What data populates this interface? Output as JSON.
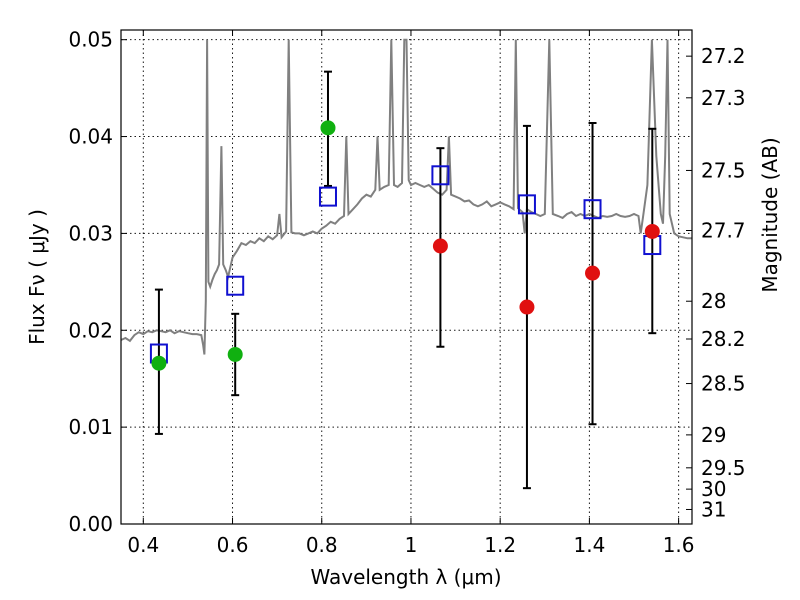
{
  "chart_data": {
    "type": "scatter",
    "xlabel": "Wavelength  λ (μm)",
    "ylabel": "Flux  Fν  ( μJy )",
    "ylabel_right": "Magnitude (AB)",
    "xlim": [
      0.35,
      1.63
    ],
    "ylim": [
      0.0,
      0.051
    ],
    "grid": true,
    "legend": "none",
    "x_ticks": [
      0.4,
      0.6,
      0.8,
      1.0,
      1.2,
      1.4,
      1.6
    ],
    "x_tick_labels": [
      "0.4",
      "0.6",
      "0.8",
      "1",
      "1.2",
      "1.4",
      "1.6"
    ],
    "y_ticks": [
      0.0,
      0.01,
      0.02,
      0.03,
      0.04,
      0.05
    ],
    "y_tick_labels": [
      "0.00",
      "0.01",
      "0.02",
      "0.03",
      "0.04",
      "0.05"
    ],
    "right_ticks": [
      {
        "label": "27.2",
        "flux": 0.0483
      },
      {
        "label": "27.3",
        "flux": 0.044
      },
      {
        "label": "27.5",
        "flux": 0.0365
      },
      {
        "label": "27.7",
        "flux": 0.0303
      },
      {
        "label": "28",
        "flux": 0.023
      },
      {
        "label": "28.2",
        "flux": 0.0191
      },
      {
        "label": "28.5",
        "flux": 0.0145
      },
      {
        "label": "29",
        "flux": 0.0092
      },
      {
        "label": "29.5",
        "flux": 0.0058
      },
      {
        "label": "30",
        "flux": 0.0036
      },
      {
        "label": "31",
        "flux": 0.0015
      }
    ],
    "model_points": [
      {
        "x": 0.435,
        "y": 0.0176
      },
      {
        "x": 0.606,
        "y": 0.0246
      },
      {
        "x": 0.814,
        "y": 0.0338
      },
      {
        "x": 1.066,
        "y": 0.036
      },
      {
        "x": 1.26,
        "y": 0.033
      },
      {
        "x": 1.407,
        "y": 0.0325
      },
      {
        "x": 1.541,
        "y": 0.0288
      }
    ],
    "green_points": [
      {
        "x": 0.435,
        "y": 0.0166,
        "err_lo": 0.0093,
        "err_hi": 0.0242
      },
      {
        "x": 0.606,
        "y": 0.0175,
        "err_lo": 0.0133,
        "err_hi": 0.0217
      },
      {
        "x": 0.814,
        "y": 0.0409,
        "err_lo": 0.0349,
        "err_hi": 0.0467
      }
    ],
    "red_points": [
      {
        "x": 1.066,
        "y": 0.0287,
        "err_lo": 0.0183,
        "err_hi": 0.0388
      },
      {
        "x": 1.26,
        "y": 0.0224,
        "err_lo": 0.0037,
        "err_hi": 0.0411
      },
      {
        "x": 1.407,
        "y": 0.0259,
        "err_lo": 0.0103,
        "err_hi": 0.0414
      },
      {
        "x": 1.541,
        "y": 0.0302,
        "err_lo": 0.0197,
        "err_hi": 0.0408
      }
    ],
    "spectrum": [
      [
        0.35,
        0.019
      ],
      [
        0.36,
        0.0192
      ],
      [
        0.37,
        0.0189
      ],
      [
        0.38,
        0.0195
      ],
      [
        0.39,
        0.0198
      ],
      [
        0.4,
        0.0196
      ],
      [
        0.41,
        0.0199
      ],
      [
        0.42,
        0.0198
      ],
      [
        0.43,
        0.02
      ],
      [
        0.44,
        0.0199
      ],
      [
        0.45,
        0.0198
      ],
      [
        0.46,
        0.02
      ],
      [
        0.47,
        0.0197
      ],
      [
        0.48,
        0.0199
      ],
      [
        0.49,
        0.0198
      ],
      [
        0.5,
        0.0197
      ],
      [
        0.51,
        0.0196
      ],
      [
        0.52,
        0.0196
      ],
      [
        0.53,
        0.0195
      ],
      [
        0.534,
        0.0185
      ],
      [
        0.537,
        0.0175
      ],
      [
        0.54,
        0.023
      ],
      [
        0.543,
        0.05
      ],
      [
        0.546,
        0.025
      ],
      [
        0.55,
        0.0245
      ],
      [
        0.555,
        0.0252
      ],
      [
        0.56,
        0.0258
      ],
      [
        0.565,
        0.0262
      ],
      [
        0.57,
        0.0268
      ],
      [
        0.575,
        0.039
      ],
      [
        0.579,
        0.0268
      ],
      [
        0.585,
        0.0262
      ],
      [
        0.59,
        0.0255
      ],
      [
        0.595,
        0.0265
      ],
      [
        0.6,
        0.0275
      ],
      [
        0.61,
        0.0282
      ],
      [
        0.62,
        0.029
      ],
      [
        0.63,
        0.0288
      ],
      [
        0.64,
        0.0292
      ],
      [
        0.65,
        0.029
      ],
      [
        0.66,
        0.0295
      ],
      [
        0.67,
        0.0292
      ],
      [
        0.68,
        0.0297
      ],
      [
        0.69,
        0.0294
      ],
      [
        0.7,
        0.0298
      ],
      [
        0.705,
        0.032
      ],
      [
        0.71,
        0.0296
      ],
      [
        0.72,
        0.0302
      ],
      [
        0.726,
        0.05
      ],
      [
        0.732,
        0.0301
      ],
      [
        0.74,
        0.03
      ],
      [
        0.75,
        0.03
      ],
      [
        0.76,
        0.0298
      ],
      [
        0.77,
        0.03
      ],
      [
        0.78,
        0.0302
      ],
      [
        0.79,
        0.03
      ],
      [
        0.8,
        0.0305
      ],
      [
        0.81,
        0.0308
      ],
      [
        0.82,
        0.0312
      ],
      [
        0.83,
        0.031
      ],
      [
        0.84,
        0.0315
      ],
      [
        0.85,
        0.0318
      ],
      [
        0.855,
        0.04
      ],
      [
        0.86,
        0.032
      ],
      [
        0.87,
        0.0325
      ],
      [
        0.88,
        0.033
      ],
      [
        0.89,
        0.0336
      ],
      [
        0.9,
        0.034
      ],
      [
        0.91,
        0.0338
      ],
      [
        0.92,
        0.0345
      ],
      [
        0.925,
        0.04
      ],
      [
        0.93,
        0.0345
      ],
      [
        0.94,
        0.0348
      ],
      [
        0.95,
        0.035
      ],
      [
        0.956,
        0.05
      ],
      [
        0.962,
        0.035
      ],
      [
        0.97,
        0.0348
      ],
      [
        0.98,
        0.0352
      ],
      [
        0.985,
        0.05
      ],
      [
        0.99,
        0.05
      ],
      [
        0.995,
        0.0355
      ],
      [
        1.0,
        0.035
      ],
      [
        1.01,
        0.0352
      ],
      [
        1.02,
        0.035
      ],
      [
        1.03,
        0.0348
      ],
      [
        1.04,
        0.035
      ],
      [
        1.05,
        0.0346
      ],
      [
        1.06,
        0.0342
      ],
      [
        1.07,
        0.034
      ],
      [
        1.08,
        0.0345
      ],
      [
        1.085,
        0.04
      ],
      [
        1.09,
        0.034
      ],
      [
        1.1,
        0.0338
      ],
      [
        1.11,
        0.0336
      ],
      [
        1.12,
        0.0333
      ],
      [
        1.13,
        0.0334
      ],
      [
        1.14,
        0.033
      ],
      [
        1.15,
        0.0328
      ],
      [
        1.16,
        0.033
      ],
      [
        1.17,
        0.0333
      ],
      [
        1.18,
        0.0328
      ],
      [
        1.19,
        0.033
      ],
      [
        1.2,
        0.0332
      ],
      [
        1.21,
        0.033
      ],
      [
        1.22,
        0.0328
      ],
      [
        1.23,
        0.0325
      ],
      [
        1.235,
        0.05
      ],
      [
        1.24,
        0.0326
      ],
      [
        1.25,
        0.0322
      ],
      [
        1.255,
        0.03
      ],
      [
        1.26,
        0.0325
      ],
      [
        1.27,
        0.0322
      ],
      [
        1.28,
        0.032
      ],
      [
        1.29,
        0.0318
      ],
      [
        1.3,
        0.032
      ],
      [
        1.31,
        0.05
      ],
      [
        1.318,
        0.032
      ],
      [
        1.33,
        0.0318
      ],
      [
        1.34,
        0.0316
      ],
      [
        1.35,
        0.032
      ],
      [
        1.36,
        0.0322
      ],
      [
        1.37,
        0.0318
      ],
      [
        1.38,
        0.032
      ],
      [
        1.39,
        0.0318
      ],
      [
        1.4,
        0.032
      ],
      [
        1.41,
        0.0318
      ],
      [
        1.42,
        0.0316
      ],
      [
        1.43,
        0.0318
      ],
      [
        1.44,
        0.0317
      ],
      [
        1.45,
        0.0318
      ],
      [
        1.46,
        0.032
      ],
      [
        1.47,
        0.0318
      ],
      [
        1.48,
        0.0317
      ],
      [
        1.49,
        0.0318
      ],
      [
        1.5,
        0.032
      ],
      [
        1.51,
        0.0318
      ],
      [
        1.515,
        0.03
      ],
      [
        1.52,
        0.0316
      ],
      [
        1.53,
        0.035
      ],
      [
        1.54,
        0.05
      ],
      [
        1.55,
        0.038
      ],
      [
        1.56,
        0.032
      ],
      [
        1.565,
        0.031
      ],
      [
        1.57,
        0.038
      ],
      [
        1.575,
        0.05
      ],
      [
        1.58,
        0.032
      ],
      [
        1.59,
        0.03
      ],
      [
        1.6,
        0.0297
      ],
      [
        1.61,
        0.0296
      ],
      [
        1.62,
        0.0295
      ],
      [
        1.63,
        0.0295
      ]
    ],
    "colors": {
      "spectrum": "#808080",
      "model_points": "#1010d0",
      "green_points": "#10b010",
      "red_points": "#e01010",
      "error_bars": "#000000"
    }
  }
}
